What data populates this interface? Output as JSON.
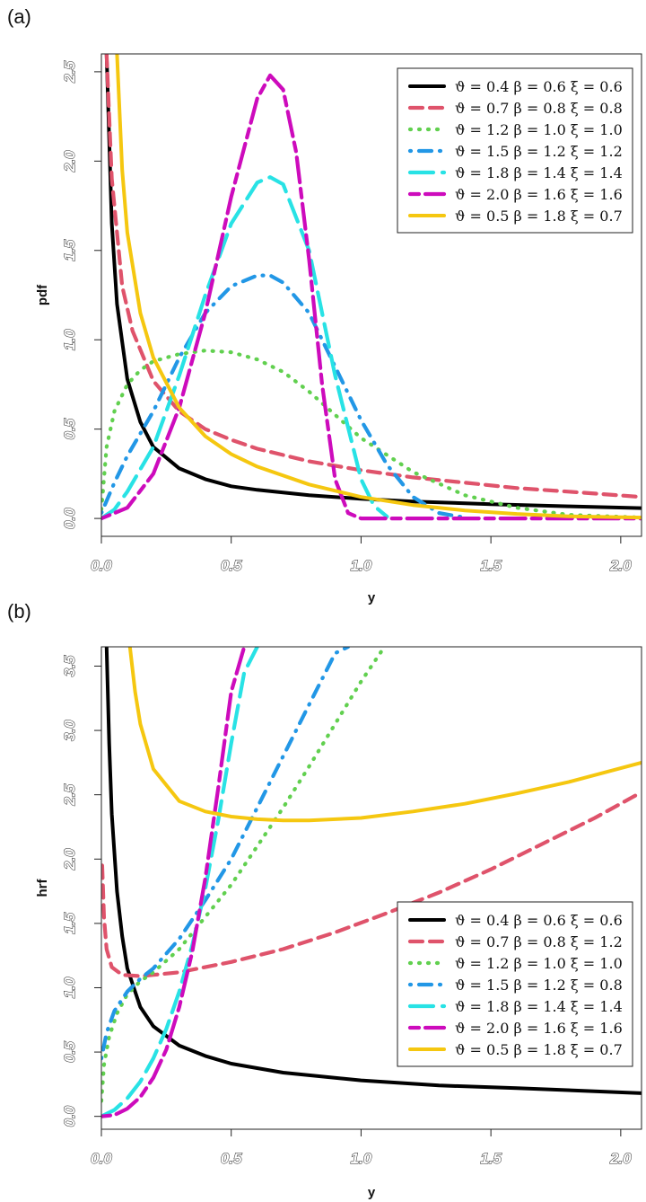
{
  "chart_data": [
    {
      "type": "line",
      "panel_label": "(a)",
      "title": "",
      "xlabel": "y",
      "ylabel": "pdf",
      "xlim": [
        0,
        2.08
      ],
      "ylim": [
        -0.1,
        2.6
      ],
      "xticks": [
        "0.0",
        "0.5",
        "1.0",
        "1.5",
        "2.0"
      ],
      "yticks": [
        "0.0",
        "0.5",
        "1.0",
        "1.5",
        "2.0",
        "2.5"
      ],
      "legend_position": "top-right",
      "series": [
        {
          "name": "ϑ = 0.4  β = 0.6  ξ = 0.6",
          "color": "#000000",
          "style": "solid",
          "x": [
            0.02,
            0.04,
            0.06,
            0.1,
            0.15,
            0.2,
            0.3,
            0.4,
            0.5,
            0.6,
            0.8,
            1.0,
            1.2,
            1.5,
            1.8,
            2.08
          ],
          "y": [
            2.6,
            1.65,
            1.2,
            0.78,
            0.54,
            0.4,
            0.28,
            0.22,
            0.18,
            0.16,
            0.13,
            0.11,
            0.095,
            0.08,
            0.068,
            0.058
          ]
        },
        {
          "name": "ϑ = 0.7  β = 0.8  ξ = 0.8",
          "color": "#DF536B",
          "style": "dashed",
          "x": [
            0.02,
            0.04,
            0.08,
            0.12,
            0.2,
            0.3,
            0.4,
            0.5,
            0.6,
            0.8,
            1.0,
            1.2,
            1.4,
            1.6,
            1.8,
            2.08
          ],
          "y": [
            2.6,
            1.9,
            1.3,
            1.05,
            0.77,
            0.6,
            0.5,
            0.44,
            0.39,
            0.32,
            0.27,
            0.23,
            0.2,
            0.17,
            0.15,
            0.12
          ]
        },
        {
          "name": "ϑ = 1.2  β = 1.0  ξ = 1.0",
          "color": "#61D04F",
          "style": "dotted",
          "x": [
            0,
            0.02,
            0.05,
            0.1,
            0.15,
            0.2,
            0.3,
            0.4,
            0.5,
            0.6,
            0.7,
            0.8,
            0.9,
            1.0,
            1.2,
            1.4,
            1.6,
            1.8,
            2.08
          ],
          "y": [
            0.05,
            0.4,
            0.6,
            0.75,
            0.83,
            0.88,
            0.92,
            0.94,
            0.93,
            0.89,
            0.82,
            0.71,
            0.58,
            0.45,
            0.26,
            0.13,
            0.06,
            0.02,
            0.005
          ]
        },
        {
          "name": "ϑ = 1.5  β = 1.2  ξ = 1.2",
          "color": "#2297E6",
          "style": "dotdash",
          "x": [
            0,
            0.05,
            0.1,
            0.2,
            0.3,
            0.4,
            0.5,
            0.6,
            0.65,
            0.7,
            0.8,
            0.9,
            1.0,
            1.1,
            1.2,
            1.3,
            1.4
          ],
          "y": [
            0.03,
            0.2,
            0.35,
            0.6,
            0.9,
            1.15,
            1.3,
            1.36,
            1.36,
            1.32,
            1.15,
            0.85,
            0.55,
            0.3,
            0.12,
            0.03,
            0.005
          ]
        },
        {
          "name": "ϑ = 1.8  β = 1.4  ξ = 1.4",
          "color": "#28E2E5",
          "style": "longdash",
          "x": [
            0,
            0.05,
            0.1,
            0.2,
            0.3,
            0.4,
            0.5,
            0.6,
            0.65,
            0.7,
            0.8,
            0.9,
            1.0,
            1.05,
            1.1
          ],
          "y": [
            0,
            0.05,
            0.15,
            0.4,
            0.8,
            1.25,
            1.65,
            1.88,
            1.91,
            1.87,
            1.5,
            0.8,
            0.22,
            0.07,
            0.01
          ]
        },
        {
          "name": "ϑ = 2.0  β = 1.6  ξ = 1.6",
          "color": "#CD0BBC",
          "style": "twodash",
          "x": [
            0,
            0.1,
            0.2,
            0.3,
            0.4,
            0.5,
            0.6,
            0.65,
            0.7,
            0.75,
            0.8,
            0.85,
            0.9,
            0.95,
            1.0,
            1.1,
            1.5,
            2.08
          ],
          "y": [
            0,
            0.06,
            0.25,
            0.62,
            1.15,
            1.8,
            2.35,
            2.48,
            2.4,
            2.05,
            1.45,
            0.75,
            0.22,
            0.03,
            0,
            0,
            0,
            0
          ]
        },
        {
          "name": "ϑ = 0.5  β = 1.8  ξ = 0.7",
          "color": "#F5C710",
          "style": "solid",
          "x": [
            0.06,
            0.08,
            0.1,
            0.15,
            0.2,
            0.3,
            0.4,
            0.5,
            0.6,
            0.8,
            1.0,
            1.2,
            1.4,
            1.6,
            1.8,
            2.08
          ],
          "y": [
            2.6,
            1.95,
            1.6,
            1.15,
            0.9,
            0.62,
            0.46,
            0.36,
            0.29,
            0.19,
            0.12,
            0.075,
            0.045,
            0.025,
            0.012,
            0.005
          ]
        }
      ]
    },
    {
      "type": "line",
      "panel_label": "(b)",
      "title": "",
      "xlabel": "y",
      "ylabel": "hrf",
      "xlim": [
        0,
        2.08
      ],
      "ylim": [
        -0.1,
        3.65
      ],
      "xticks": [
        "0.0",
        "0.5",
        "1.0",
        "1.5",
        "2.0"
      ],
      "yticks": [
        "0.0",
        "0.5",
        "1.0",
        "1.5",
        "2.0",
        "2.5",
        "3.0",
        "3.5"
      ],
      "legend_position": "bottom-right",
      "series": [
        {
          "name": "ϑ = 0.4  β = 0.6  ξ = 0.6",
          "color": "#000000",
          "style": "solid",
          "x": [
            0.02,
            0.03,
            0.04,
            0.06,
            0.08,
            0.1,
            0.15,
            0.2,
            0.3,
            0.4,
            0.5,
            0.7,
            1.0,
            1.3,
            1.6,
            2.08
          ],
          "y": [
            3.65,
            2.9,
            2.35,
            1.75,
            1.4,
            1.15,
            0.85,
            0.7,
            0.55,
            0.47,
            0.41,
            0.34,
            0.28,
            0.24,
            0.22,
            0.18
          ]
        },
        {
          "name": "ϑ = 0.7  β = 0.8  ξ = 1.2",
          "color": "#DF536B",
          "style": "dashed",
          "x": [
            0.003,
            0.01,
            0.02,
            0.04,
            0.08,
            0.15,
            0.2,
            0.3,
            0.5,
            0.7,
            0.9,
            1.1,
            1.3,
            1.5,
            1.7,
            1.9,
            2.08
          ],
          "y": [
            1.95,
            1.55,
            1.3,
            1.16,
            1.1,
            1.09,
            1.1,
            1.12,
            1.2,
            1.3,
            1.43,
            1.58,
            1.74,
            1.92,
            2.12,
            2.32,
            2.52
          ]
        },
        {
          "name": "ϑ = 1.2  β = 1.0  ξ = 1.0",
          "color": "#61D04F",
          "style": "dotted",
          "x": [
            0,
            0.01,
            0.03,
            0.06,
            0.1,
            0.15,
            0.2,
            0.3,
            0.4,
            0.5,
            0.6,
            0.7,
            0.8,
            0.9,
            1.0,
            1.08
          ],
          "y": [
            0.12,
            0.4,
            0.62,
            0.8,
            0.95,
            1.05,
            1.12,
            1.3,
            1.55,
            1.8,
            2.1,
            2.4,
            2.72,
            3.05,
            3.38,
            3.62
          ]
        },
        {
          "name": "ϑ = 1.5  β = 1.2  ξ = 0.8",
          "color": "#2297E6",
          "style": "dotdash",
          "x": [
            0,
            0.02,
            0.05,
            0.1,
            0.15,
            0.2,
            0.3,
            0.4,
            0.5,
            0.6,
            0.7,
            0.8,
            0.9,
            0.95
          ],
          "y": [
            0.45,
            0.65,
            0.82,
            0.97,
            1.07,
            1.15,
            1.38,
            1.68,
            2.0,
            2.4,
            2.8,
            3.2,
            3.6,
            3.65
          ]
        },
        {
          "name": "ϑ = 1.8  β = 1.4  ξ = 1.4",
          "color": "#28E2E5",
          "style": "longdash",
          "x": [
            0,
            0.05,
            0.1,
            0.15,
            0.2,
            0.25,
            0.3,
            0.35,
            0.4,
            0.45,
            0.5,
            0.55,
            0.6
          ],
          "y": [
            0,
            0.05,
            0.14,
            0.27,
            0.45,
            0.68,
            0.97,
            1.33,
            1.77,
            2.3,
            2.9,
            3.45,
            3.65
          ]
        },
        {
          "name": "ϑ = 2.0  β = 1.6  ξ = 1.6",
          "color": "#CD0BBC",
          "style": "twodash",
          "x": [
            0,
            0.05,
            0.1,
            0.15,
            0.2,
            0.25,
            0.3,
            0.35,
            0.4,
            0.45,
            0.5,
            0.55
          ],
          "y": [
            0,
            0.01,
            0.06,
            0.15,
            0.3,
            0.52,
            0.85,
            1.28,
            1.85,
            2.55,
            3.3,
            3.65
          ]
        },
        {
          "name": "ϑ = 0.5  β = 1.8  ξ = 0.7",
          "color": "#F5C710",
          "style": "solid",
          "x": [
            0.11,
            0.13,
            0.15,
            0.2,
            0.3,
            0.4,
            0.5,
            0.6,
            0.7,
            0.8,
            1.0,
            1.2,
            1.4,
            1.6,
            1.8,
            2.08
          ],
          "y": [
            3.65,
            3.3,
            3.05,
            2.7,
            2.45,
            2.37,
            2.33,
            2.31,
            2.3,
            2.3,
            2.32,
            2.37,
            2.43,
            2.51,
            2.6,
            2.75
          ]
        }
      ]
    }
  ]
}
